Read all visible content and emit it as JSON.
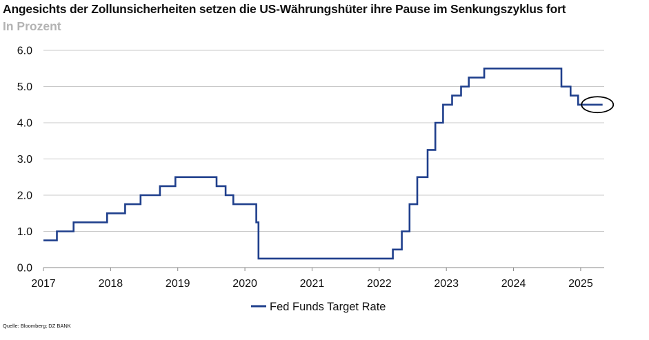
{
  "title": "Angesichts der Zollunsicherheiten setzen die US-Währungshüter ihre Pause im Senkungszyklus fort",
  "subtitle": "In Prozent",
  "source": "Quelle: Bloomberg; DZ BANK",
  "colors": {
    "series": "#1f3f8c",
    "grid": "#c8c8c8",
    "axis": "#888888"
  },
  "chart_data": {
    "type": "line",
    "step": true,
    "title": "Angesichts der Zollunsicherheiten setzen die US-Währungshüter ihre Pause im Senkungszyklus fort",
    "ylabel": "In Prozent",
    "xlabel": "",
    "xlim": [
      2017.0,
      2025.35
    ],
    "ylim": [
      0,
      6
    ],
    "grid": true,
    "legend_position": "bottom-center",
    "x_ticks": [
      "2017",
      "2018",
      "2019",
      "2020",
      "2021",
      "2022",
      "2023",
      "2024",
      "2025"
    ],
    "y_ticks": [
      "0.0",
      "1.0",
      "2.0",
      "3.0",
      "4.0",
      "5.0",
      "6.0"
    ],
    "annotation": "ellipse around the current 4.5 level",
    "series": [
      {
        "name": "Fed Funds Target Rate",
        "x": [
          "2017-01-01",
          "2017-03-15",
          "2017-06-14",
          "2017-12-13",
          "2018-03-21",
          "2018-06-13",
          "2018-09-26",
          "2018-12-19",
          "2019-07-31",
          "2019-09-18",
          "2019-10-30",
          "2020-03-03",
          "2020-03-15",
          "2022-03-16",
          "2022-05-04",
          "2022-06-15",
          "2022-07-27",
          "2022-09-21",
          "2022-11-02",
          "2022-12-14",
          "2023-02-01",
          "2023-03-22",
          "2023-05-03",
          "2023-07-26",
          "2024-09-18",
          "2024-11-07",
          "2024-12-18",
          "2025-04-30"
        ],
        "values": [
          0.75,
          1.0,
          1.25,
          1.5,
          1.75,
          2.0,
          2.25,
          2.5,
          2.25,
          2.0,
          1.75,
          1.25,
          0.25,
          0.5,
          1.0,
          1.75,
          2.5,
          3.25,
          4.0,
          4.5,
          4.75,
          5.0,
          5.25,
          5.5,
          5.0,
          4.75,
          4.5,
          4.5
        ]
      }
    ]
  }
}
